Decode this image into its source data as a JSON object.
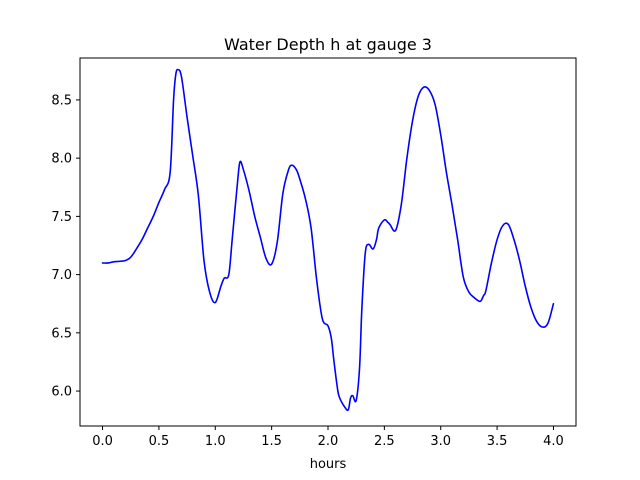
{
  "chart_data": {
    "type": "line",
    "title": "Water Depth h at gauge 3",
    "xlabel": "hours",
    "ylabel": "",
    "xlim": [
      -0.2,
      4.2
    ],
    "ylim": [
      5.7,
      8.86
    ],
    "grid": false,
    "legend": "none",
    "x_ticks": [
      0.0,
      0.5,
      1.0,
      1.5,
      2.0,
      2.5,
      3.0,
      3.5,
      4.0
    ],
    "x_tick_labels": [
      "0.0",
      "0.5",
      "1.0",
      "1.5",
      "2.0",
      "2.5",
      "3.0",
      "3.5",
      "4.0"
    ],
    "y_ticks": [
      6.0,
      6.5,
      7.0,
      7.5,
      8.0,
      8.5
    ],
    "y_tick_labels": [
      "6.0",
      "6.5",
      "7.0",
      "7.5",
      "8.0",
      "8.5"
    ],
    "series": [
      {
        "color": "#0000ff",
        "x": [
          0.0,
          0.05,
          0.1,
          0.2,
          0.25,
          0.3,
          0.35,
          0.4,
          0.45,
          0.5,
          0.55,
          0.6,
          0.63,
          0.65,
          0.67,
          0.7,
          0.75,
          0.8,
          0.85,
          0.9,
          0.95,
          1.0,
          1.05,
          1.08,
          1.12,
          1.15,
          1.2,
          1.22,
          1.25,
          1.3,
          1.35,
          1.4,
          1.45,
          1.5,
          1.55,
          1.6,
          1.65,
          1.68,
          1.72,
          1.75,
          1.8,
          1.85,
          1.9,
          1.95,
          2.0,
          2.03,
          2.05,
          2.08,
          2.1,
          2.15,
          2.18,
          2.2,
          2.22,
          2.25,
          2.28,
          2.3,
          2.33,
          2.36,
          2.4,
          2.43,
          2.45,
          2.5,
          2.53,
          2.55,
          2.6,
          2.65,
          2.7,
          2.75,
          2.8,
          2.85,
          2.9,
          2.95,
          3.0,
          3.05,
          3.1,
          3.15,
          3.2,
          3.25,
          3.3,
          3.35,
          3.38,
          3.4,
          3.45,
          3.5,
          3.55,
          3.6,
          3.65,
          3.7,
          3.75,
          3.8,
          3.85,
          3.9,
          3.95,
          4.0
        ],
        "y": [
          7.1,
          7.1,
          7.11,
          7.12,
          7.15,
          7.22,
          7.3,
          7.4,
          7.5,
          7.62,
          7.73,
          7.88,
          8.5,
          8.72,
          8.76,
          8.7,
          8.35,
          8.02,
          7.68,
          7.12,
          6.85,
          6.76,
          6.9,
          6.97,
          7.0,
          7.3,
          7.82,
          7.97,
          7.9,
          7.72,
          7.5,
          7.32,
          7.14,
          7.09,
          7.28,
          7.7,
          7.9,
          7.94,
          7.9,
          7.82,
          7.65,
          7.4,
          6.95,
          6.62,
          6.56,
          6.45,
          6.28,
          6.05,
          5.95,
          5.86,
          5.84,
          5.94,
          5.96,
          5.92,
          6.2,
          6.7,
          7.18,
          7.26,
          7.22,
          7.3,
          7.4,
          7.47,
          7.45,
          7.43,
          7.38,
          7.6,
          8.0,
          8.32,
          8.53,
          8.61,
          8.58,
          8.46,
          8.2,
          7.88,
          7.6,
          7.3,
          6.98,
          6.85,
          6.8,
          6.77,
          6.82,
          6.86,
          7.1,
          7.3,
          7.42,
          7.43,
          7.3,
          7.12,
          6.9,
          6.72,
          6.6,
          6.55,
          6.58,
          6.75
        ]
      }
    ]
  }
}
